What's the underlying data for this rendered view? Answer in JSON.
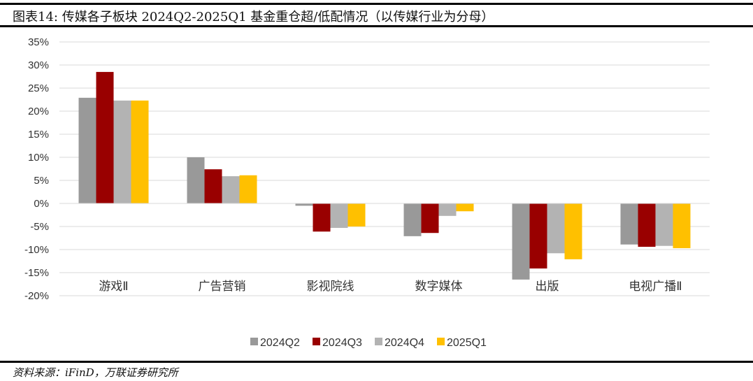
{
  "title": "图表14: 传媒各子板块 2024Q2-2025Q1 基金重仓超/低配情况（以传媒行业为分母）",
  "source": "资料来源：iFinD，万联证券研究所",
  "chart_data": {
    "type": "bar",
    "categories": [
      "游戏Ⅱ",
      "广告营销",
      "影视院线",
      "数字媒体",
      "出版",
      "电视广播Ⅱ"
    ],
    "series": [
      {
        "name": "2024Q2",
        "color": "#999999",
        "values": [
          22.9,
          10.0,
          -0.5,
          -7.1,
          -16.5,
          -8.9
        ]
      },
      {
        "name": "2024Q3",
        "color": "#990000",
        "values": [
          28.5,
          7.4,
          -6.1,
          -6.4,
          -14.1,
          -9.4
        ]
      },
      {
        "name": "2024Q4",
        "color": "#b3b3b3",
        "values": [
          22.3,
          5.9,
          -5.3,
          -2.7,
          -10.8,
          -9.2
        ]
      },
      {
        "name": "2025Q1",
        "color": "#ffc000",
        "values": [
          22.3,
          6.1,
          -5.0,
          -1.7,
          -12.1,
          -9.7
        ]
      }
    ],
    "yticks": [
      "35%",
      "30%",
      "25%",
      "20%",
      "15%",
      "10%",
      "5%",
      "0%",
      "-5%",
      "-10%",
      "-15%",
      "-20%"
    ],
    "ylim": [
      -20,
      35
    ],
    "grid": true,
    "legend": "bottom"
  }
}
